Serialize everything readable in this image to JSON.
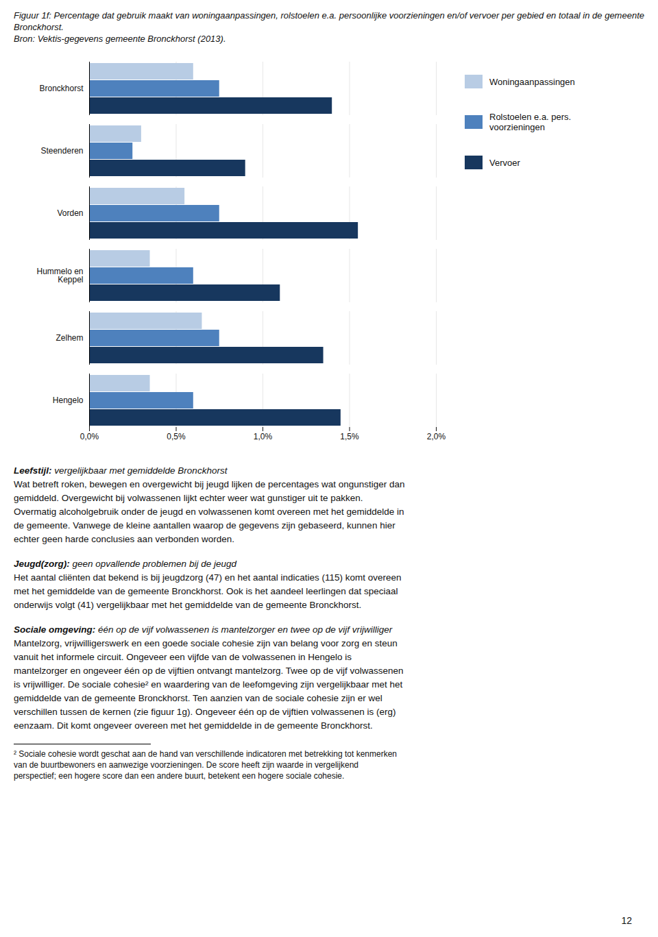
{
  "chart_data": {
    "type": "bar",
    "orientation": "horizontal",
    "title": "Figuur 1f: Percentage dat gebruik maakt van woningaanpassingen, rolstoelen e.a. persoonlijke voorzieningen en/of vervoer per gebied en totaal in de gemeente Bronckhorst.",
    "subtitle": "Bron: Vektis-gegevens gemeente Bronckhorst (2013).",
    "categories": [
      "Bronckhorst",
      "Steenderen",
      "Vorden",
      "Hummelo en\nKeppel",
      "Zelhem",
      "Hengelo"
    ],
    "series": [
      {
        "name": "Woningaanpassingen",
        "color": "#b8cce4",
        "values": [
          0.006,
          0.003,
          0.0055,
          0.0035,
          0.0065,
          0.0035
        ]
      },
      {
        "name": "Rolstoelen e.a. pers. voorzieningen",
        "color": "#4e81bd",
        "values": [
          0.0075,
          0.0025,
          0.0075,
          0.006,
          0.0075,
          0.006
        ]
      },
      {
        "name": "Vervoer",
        "color": "#17375e",
        "values": [
          0.014,
          0.009,
          0.0155,
          0.011,
          0.0135,
          0.0145
        ]
      }
    ],
    "xlim": [
      0,
      0.02
    ],
    "xticks": [
      {
        "value": 0.0,
        "label": "0,0%"
      },
      {
        "value": 0.005,
        "label": "0,5%"
      },
      {
        "value": 0.01,
        "label": "1,0%"
      },
      {
        "value": 0.015,
        "label": "1,5%"
      },
      {
        "value": 0.02,
        "label": "2,0%"
      }
    ],
    "grid": true,
    "legend": "right",
    "annotations": [
      {
        "bold": "Leefstijl:",
        "italic": " vergelijkbaar met gemiddelde Bronckhorst",
        "text": "Wat betreft roken, bewegen en overgewicht bij jeugd lijken de percentages wat ongunstiger dan\ngemiddeld. Overgewicht bij volwassenen lijkt echter weer wat gunstiger uit te pakken.\nOvermatig alcoholgebruik onder de jeugd en volwassenen komt overeen met het gemiddelde in\nde gemeente. Vanwege de kleine aantallen waarop de gegevens zijn gebaseerd, kunnen hier\nechter geen harde conclusies aan verbonden worden."
      },
      {
        "bold": "Jeugd(zorg):",
        "italic": " geen opvallende problemen bij de jeugd",
        "text": "Het aantal cliënten dat bekend is bij jeugdzorg (47) en het aantal indicaties (115) komt overeen\nmet het gemiddelde van de gemeente Bronckhorst. Ook is het aandeel leerlingen dat speciaal\nonderwijs volgt (41) vergelijkbaar met het gemiddelde van de gemeente Bronckhorst."
      },
      {
        "bold": "Sociale omgeving:",
        "italic": " één op de vijf volwassenen is mantelzorger en twee op de vijf vrijwilliger",
        "text": "Mantelzorg, vrijwilligerswerk en een goede sociale cohesie zijn van belang voor zorg en steun\nvanuit het informele circuit. Ongeveer een vijfde van de volwassenen in Hengelo is\nmantelzorger en ongeveer één op de vijftien ontvangt mantelzorg. Twee op de vijf volwassenen\nis vrijwilliger. De sociale cohesie² en waardering van de leefomgeving zijn vergelijkbaar met het\ngemiddelde van de gemeente Bronckhorst. Ten aanzien van de sociale cohesie zijn er wel\nverschillen tussen de kernen (zie figuur 1g). Ongeveer één op de vijftien volwassenen is (erg)\neenzaam. Dit komt ongeveer overeen met het gemiddelde in de gemeente Bronckhorst."
      }
    ],
    "footnote": "² Sociale cohesie wordt geschat aan de hand van verschillende indicatoren met betrekking tot kenmerken\nvan de buurtbewoners en aanwezige voorzieningen. De score heeft zijn waarde in vergelijkend\nperspectief; een hogere score dan een andere buurt, betekent een hogere sociale cohesie.",
    "page_number": "12"
  }
}
